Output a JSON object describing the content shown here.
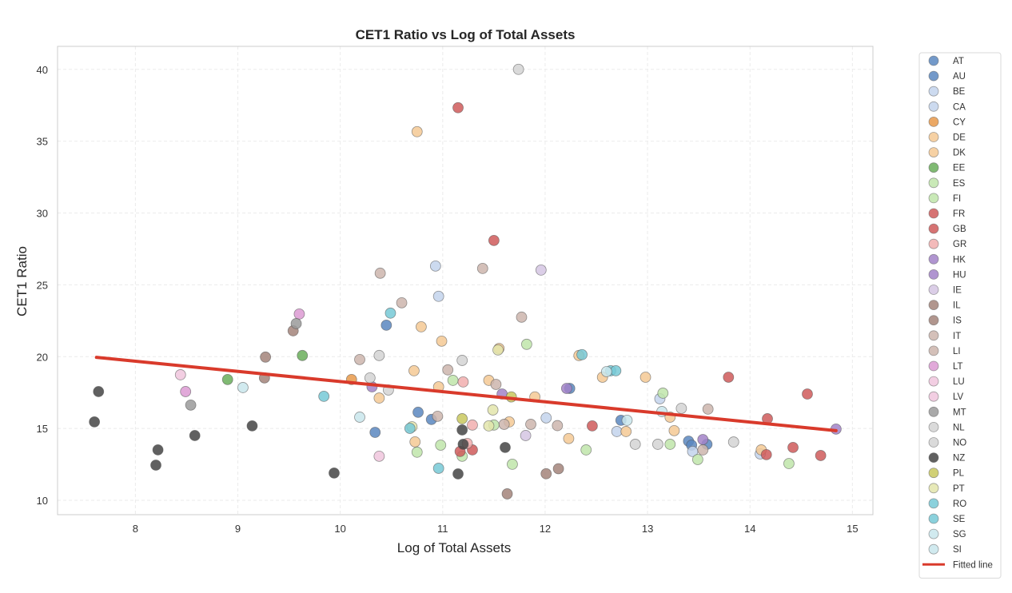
{
  "chart_data": {
    "type": "scatter",
    "title": "CET1 Ratio vs Log of Total Assets",
    "xlabel": "Log of Total Assets",
    "ylabel": "CET1 Ratio",
    "xlim": [
      7.24,
      15.2
    ],
    "ylim": [
      9.0,
      41.6
    ],
    "xticks": [
      8,
      9,
      10,
      11,
      12,
      13,
      14,
      15
    ],
    "yticks": [
      10,
      15,
      20,
      25,
      30,
      35,
      40
    ],
    "grid": true,
    "legend_position": "outside-right",
    "fitted_line": {
      "label": "Fitted line",
      "color": "#d93a2b",
      "x": [
        7.62,
        14.84
      ],
      "y": [
        19.95,
        14.85
      ]
    },
    "series": [
      {
        "name": "AT",
        "color": "#5b87bf",
        "points": [
          [
            10.34,
            14.73
          ],
          [
            10.76,
            16.13
          ],
          [
            10.89,
            15.63
          ],
          [
            13.4,
            14.12
          ]
        ]
      },
      {
        "name": "AU",
        "color": "#5b87bf",
        "points": [
          [
            10.45,
            22.19
          ],
          [
            12.24,
            17.79
          ],
          [
            12.74,
            15.57
          ],
          [
            13.43,
            13.84
          ],
          [
            13.58,
            13.9
          ]
        ]
      },
      {
        "name": "BE",
        "color": "#c3d3ec",
        "points": [
          [
            10.93,
            26.31
          ],
          [
            12.01,
            15.74
          ],
          [
            13.44,
            13.4
          ],
          [
            14.1,
            13.23
          ]
        ]
      },
      {
        "name": "CA",
        "color": "#c3d3ec",
        "points": [
          [
            10.96,
            24.2
          ],
          [
            12.7,
            14.79
          ],
          [
            13.12,
            17.07
          ]
        ]
      },
      {
        "name": "CY",
        "color": "#e8994a",
        "points": [
          [
            10.11,
            18.41
          ]
        ]
      },
      {
        "name": "DE",
        "color": "#f5c994",
        "points": [
          [
            10.38,
            17.12
          ],
          [
            10.72,
            19.02
          ],
          [
            10.79,
            22.08
          ],
          [
            10.99,
            21.08
          ],
          [
            10.96,
            17.9
          ],
          [
            11.45,
            18.35
          ],
          [
            11.65,
            15.46
          ],
          [
            12.33,
            20.08
          ],
          [
            12.79,
            14.79
          ],
          [
            13.22,
            15.79
          ]
        ]
      },
      {
        "name": "DK",
        "color": "#f5c994",
        "points": [
          [
            10.75,
            35.66
          ],
          [
            10.73,
            14.07
          ],
          [
            11.55,
            20.57
          ],
          [
            11.9,
            17.2
          ],
          [
            12.23,
            14.3
          ],
          [
            12.56,
            18.57
          ],
          [
            12.98,
            18.57
          ],
          [
            13.26,
            14.85
          ],
          [
            14.11,
            13.51
          ]
        ]
      },
      {
        "name": "EE",
        "color": "#6aae5b",
        "points": [
          [
            8.9,
            18.41
          ],
          [
            9.63,
            20.08
          ]
        ]
      },
      {
        "name": "ES",
        "color": "#bfe5aa",
        "points": [
          [
            11.1,
            18.35
          ],
          [
            10.75,
            13.35
          ],
          [
            11.5,
            15.24
          ],
          [
            12.4,
            13.51
          ],
          [
            13.15,
            17.46
          ]
        ]
      },
      {
        "name": "FI",
        "color": "#bfe5aa",
        "points": [
          [
            10.98,
            13.84
          ],
          [
            11.19,
            13.07
          ],
          [
            11.68,
            12.51
          ],
          [
            11.82,
            20.86
          ],
          [
            13.22,
            13.9
          ],
          [
            13.49,
            12.84
          ],
          [
            14.38,
            12.56
          ]
        ]
      },
      {
        "name": "FR",
        "color": "#cf5b5b",
        "points": [
          [
            11.15,
            37.33
          ],
          [
            11.29,
            13.51
          ],
          [
            12.46,
            15.18
          ],
          [
            13.79,
            18.57
          ],
          [
            14.17,
            15.68
          ],
          [
            14.56,
            17.4
          ]
        ]
      },
      {
        "name": "GB",
        "color": "#cf5b5b",
        "points": [
          [
            11.5,
            28.09
          ],
          [
            11.17,
            13.4
          ],
          [
            14.16,
            13.18
          ],
          [
            14.42,
            13.68
          ],
          [
            14.69,
            13.12
          ]
        ]
      },
      {
        "name": "GR",
        "color": "#f1aeae",
        "points": [
          [
            11.2,
            18.24
          ],
          [
            11.29,
            15.24
          ],
          [
            11.24,
            13.96
          ]
        ]
      },
      {
        "name": "HK",
        "color": "#a283c8",
        "points": [
          [
            10.31,
            17.9
          ],
          [
            11.58,
            17.4
          ],
          [
            12.21,
            17.79
          ]
        ]
      },
      {
        "name": "HU",
        "color": "#a283c8",
        "points": [
          [
            14.84,
            14.96
          ],
          [
            13.54,
            14.23
          ]
        ]
      },
      {
        "name": "IE",
        "color": "#d5c5e3",
        "points": [
          [
            11.96,
            26.03
          ],
          [
            11.81,
            14.51
          ]
        ]
      },
      {
        "name": "IL",
        "color": "#a3847a",
        "points": [
          [
            9.27,
            19.97
          ],
          [
            12.01,
            11.85
          ]
        ]
      },
      {
        "name": "IS",
        "color": "#a3847a",
        "points": [
          [
            9.26,
            18.52
          ],
          [
            9.54,
            21.8
          ],
          [
            11.63,
            10.45
          ],
          [
            12.13,
            12.2
          ]
        ]
      },
      {
        "name": "IT",
        "color": "#cdb5ad",
        "points": [
          [
            10.39,
            25.81
          ],
          [
            10.6,
            23.75
          ],
          [
            10.19,
            19.8
          ],
          [
            11.05,
            19.08
          ],
          [
            11.39,
            26.14
          ],
          [
            11.77,
            22.75
          ],
          [
            11.52,
            18.07
          ]
        ]
      },
      {
        "name": "LI",
        "color": "#cdb5ad",
        "points": [
          [
            10.95,
            15.85
          ],
          [
            11.86,
            15.29
          ],
          [
            11.6,
            15.29
          ],
          [
            13.54,
            13.51
          ],
          [
            13.59,
            16.35
          ],
          [
            12.12,
            15.2
          ]
        ]
      },
      {
        "name": "LT",
        "color": "#dc9ad2",
        "points": [
          [
            8.49,
            17.57
          ],
          [
            9.6,
            22.97
          ]
        ]
      },
      {
        "name": "LU",
        "color": "#f0c6dd",
        "points": [
          [
            8.44,
            18.74
          ]
        ]
      },
      {
        "name": "LV",
        "color": "#f0c6dd",
        "points": [
          [
            10.38,
            13.07
          ]
        ]
      },
      {
        "name": "MT",
        "color": "#9a9a9a",
        "points": [
          [
            8.54,
            16.63
          ],
          [
            9.57,
            22.3
          ]
        ]
      },
      {
        "name": "NL",
        "color": "#d4d4d4",
        "points": [
          [
            10.29,
            18.52
          ],
          [
            10.38,
            20.08
          ],
          [
            11.74,
            40.0
          ],
          [
            13.33,
            16.4
          ],
          [
            12.88,
            13.9
          ]
        ]
      },
      {
        "name": "NO",
        "color": "#d4d4d4",
        "points": [
          [
            10.47,
            17.68
          ],
          [
            11.19,
            19.74
          ],
          [
            13.84,
            14.06
          ],
          [
            13.1,
            13.9
          ]
        ]
      },
      {
        "name": "NZ",
        "color": "#444444",
        "points": [
          [
            7.6,
            15.46
          ],
          [
            7.64,
            17.57
          ],
          [
            8.2,
            12.45
          ],
          [
            8.22,
            13.51
          ],
          [
            8.58,
            14.51
          ],
          [
            9.14,
            15.18
          ],
          [
            9.94,
            11.9
          ],
          [
            11.19,
            14.9
          ],
          [
            11.2,
            13.9
          ],
          [
            11.15,
            11.84
          ],
          [
            11.61,
            13.68
          ]
        ]
      },
      {
        "name": "PL",
        "color": "#c9c85e",
        "points": [
          [
            11.19,
            15.68
          ],
          [
            11.67,
            17.2
          ]
        ]
      },
      {
        "name": "PT",
        "color": "#e3e5ac",
        "points": [
          [
            10.7,
            15.12
          ],
          [
            11.49,
            16.29
          ],
          [
            11.54,
            20.47
          ],
          [
            11.45,
            15.18
          ]
        ]
      },
      {
        "name": "RO",
        "color": "#77c9d6",
        "points": [
          [
            9.84,
            17.24
          ],
          [
            10.49,
            23.03
          ],
          [
            10.68,
            15.01
          ]
        ]
      },
      {
        "name": "SE",
        "color": "#77c9d6",
        "points": [
          [
            10.96,
            12.23
          ],
          [
            12.36,
            20.14
          ],
          [
            12.64,
            19.02
          ],
          [
            12.69,
            19.02
          ]
        ]
      },
      {
        "name": "SG",
        "color": "#c9e6ec",
        "points": [
          [
            9.05,
            17.85
          ],
          [
            12.6,
            18.96
          ],
          [
            13.14,
            16.18
          ]
        ]
      },
      {
        "name": "SI",
        "color": "#c9e6ec",
        "points": [
          [
            10.19,
            15.79
          ],
          [
            12.8,
            15.57
          ]
        ]
      }
    ]
  }
}
